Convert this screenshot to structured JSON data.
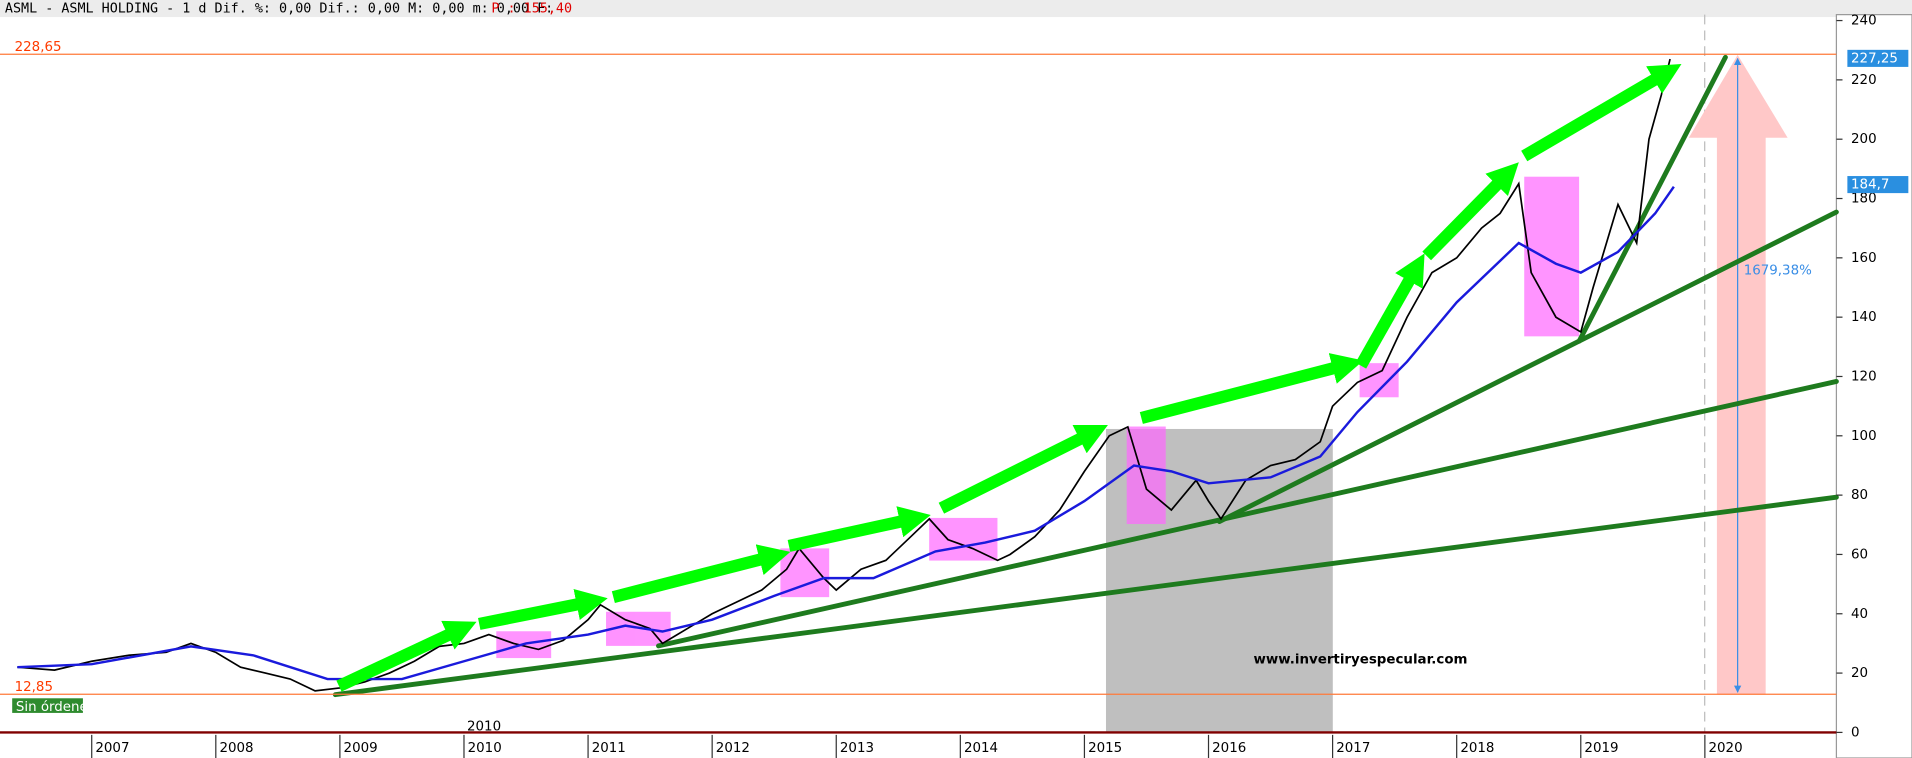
{
  "header": {
    "title": "ASML - ASML HOLDING -  1 d Dif. %: 0,00 Dif.: 0,00 M: 0,00 m: 0,00 F:",
    "price": "P : 155,40"
  },
  "chart_data": {
    "type": "line",
    "xlim": [
      2006.31,
      2021.06
    ],
    "ylim": [
      0,
      242
    ],
    "xticks": [
      2007,
      2008,
      2009,
      2010,
      2011,
      2012,
      2013,
      2014,
      2015,
      2016,
      2017,
      2018,
      2019,
      2020
    ],
    "yticks": [
      0,
      20,
      40,
      60,
      80,
      100,
      120,
      140,
      160,
      180,
      200,
      220,
      240
    ],
    "period_label": "2010",
    "series": [
      {
        "name": "ASML",
        "color": "#000000",
        "x": [
          2006.4,
          2006.7,
          2007.0,
          2007.3,
          2007.6,
          2007.8,
          2008.0,
          2008.2,
          2008.4,
          2008.6,
          2008.8,
          2009.0,
          2009.2,
          2009.4,
          2009.6,
          2009.8,
          2010.0,
          2010.2,
          2010.4,
          2010.6,
          2010.8,
          2011.0,
          2011.1,
          2011.3,
          2011.5,
          2011.6,
          2011.8,
          2012.0,
          2012.2,
          2012.4,
          2012.6,
          2012.7,
          2012.9,
          2013.0,
          2013.2,
          2013.4,
          2013.6,
          2013.75,
          2013.9,
          2014.1,
          2014.3,
          2014.4,
          2014.6,
          2014.8,
          2015.0,
          2015.2,
          2015.35,
          2015.5,
          2015.7,
          2015.9,
          2016.0,
          2016.1,
          2016.3,
          2016.5,
          2016.7,
          2016.9,
          2017.0,
          2017.2,
          2017.4,
          2017.6,
          2017.8,
          2018.0,
          2018.2,
          2018.35,
          2018.5,
          2018.6,
          2018.8,
          2019.0,
          2019.1,
          2019.3,
          2019.45,
          2019.55,
          2019.65,
          2019.72
        ],
        "values": [
          22,
          21,
          24,
          26,
          27,
          30,
          27,
          22,
          20,
          18,
          14,
          15,
          17,
          20,
          24,
          29,
          30,
          33,
          30,
          28,
          31,
          38,
          43,
          38,
          35,
          30,
          35,
          40,
          44,
          48,
          55,
          62,
          52,
          48,
          55,
          58,
          66,
          72,
          65,
          62,
          58,
          60,
          66,
          75,
          88,
          100,
          103,
          82,
          75,
          85,
          78,
          72,
          85,
          90,
          92,
          98,
          110,
          118,
          122,
          140,
          155,
          160,
          170,
          175,
          185,
          155,
          140,
          135,
          150,
          178,
          165,
          200,
          215,
          227
        ]
      },
      {
        "name": "MA",
        "color": "#1a1adc",
        "x": [
          2006.4,
          2007.0,
          2007.8,
          2008.3,
          2008.9,
          2009.5,
          2010.0,
          2010.5,
          2011.0,
          2011.3,
          2011.6,
          2012.0,
          2012.5,
          2012.9,
          2013.3,
          2013.8,
          2014.2,
          2014.6,
          2015.0,
          2015.4,
          2015.7,
          2016.0,
          2016.5,
          2016.9,
          2017.2,
          2017.6,
          2018.0,
          2018.5,
          2018.8,
          2019.0,
          2019.3,
          2019.6,
          2019.75
        ],
        "values": [
          22,
          23,
          29,
          26,
          18,
          18,
          24,
          30,
          33,
          36,
          34,
          38,
          46,
          52,
          52,
          61,
          64,
          68,
          78,
          90,
          88,
          84,
          86,
          93,
          108,
          125,
          145,
          165,
          158,
          155,
          162,
          175,
          184
        ]
      }
    ],
    "hlines": [
      {
        "value": 228.65,
        "label": "228,65"
      },
      {
        "value": 12.85,
        "label": "12,85"
      }
    ],
    "price_tags": [
      {
        "value": 227.25,
        "label": "227,25"
      },
      {
        "value": 184.7,
        "label": "184,7"
      }
    ],
    "gain_label": "1679,38%",
    "orders_label": "Sin órdenes",
    "watermark": "www.invertiryespecular.com"
  }
}
